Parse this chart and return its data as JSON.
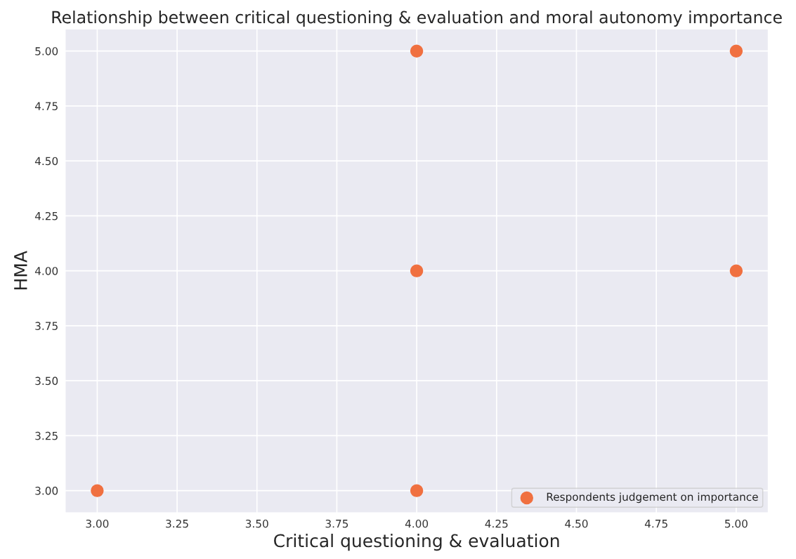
{
  "chart_data": {
    "type": "scatter",
    "title": "Relationship between critical questioning & evaluation and moral autonomy importance",
    "xlabel": "Critical questioning & evaluation",
    "ylabel": "HMA",
    "series": [
      {
        "name": "Respondents judgement on importance",
        "color": "#f07040",
        "x": [
          3,
          4,
          4,
          4,
          5,
          5
        ],
        "values": [
          3,
          3,
          4,
          5,
          4,
          5
        ]
      }
    ],
    "xlim": [
      2.9,
      5.1
    ],
    "xticks": [
      {
        "value": 3,
        "label": "3.00"
      },
      {
        "value": 3.25,
        "label": "3.25"
      },
      {
        "value": 3.5,
        "label": "3.50"
      },
      {
        "value": 3.75,
        "label": "3.75"
      },
      {
        "value": 4,
        "label": "4.00"
      },
      {
        "value": 4.25,
        "label": "4.25"
      },
      {
        "value": 4.5,
        "label": "4.50"
      },
      {
        "value": 4.75,
        "label": "4.75"
      },
      {
        "value": 5,
        "label": "5.00"
      }
    ],
    "ylim": [
      2.9,
      5.1
    ],
    "yticks": [
      {
        "value": 3,
        "label": "3.00"
      },
      {
        "value": 3.25,
        "label": "3.25"
      },
      {
        "value": 3.5,
        "label": "3.50"
      },
      {
        "value": 3.75,
        "label": "3.75"
      },
      {
        "value": 4,
        "label": "4.00"
      },
      {
        "value": 4.25,
        "label": "4.25"
      },
      {
        "value": 4.5,
        "label": "4.50"
      },
      {
        "value": 4.75,
        "label": "4.75"
      },
      {
        "value": 5,
        "label": "5.00"
      }
    ],
    "grid": true,
    "legend": "bottom right",
    "marker": "circle"
  }
}
